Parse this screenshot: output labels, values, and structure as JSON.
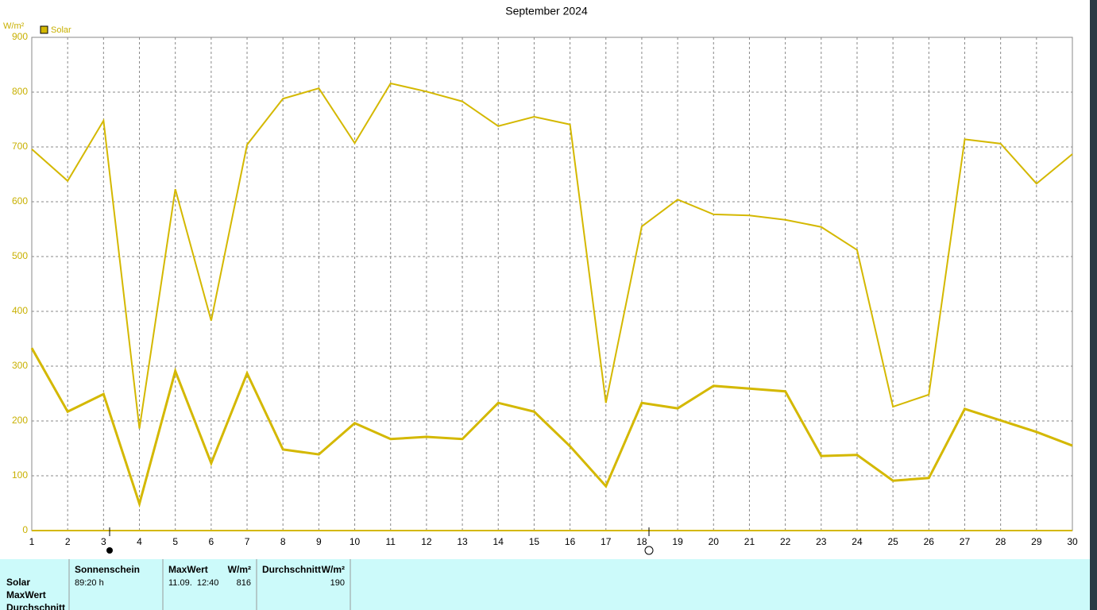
{
  "chart_data": {
    "type": "line",
    "title": "September 2024",
    "y_label": "W/m²",
    "legend_label": "Solar",
    "legend_color": "#d4b800",
    "x": [
      1,
      2,
      3,
      4,
      5,
      6,
      7,
      8,
      9,
      10,
      11,
      12,
      13,
      14,
      15,
      16,
      17,
      18,
      19,
      20,
      21,
      22,
      23,
      24,
      25,
      26,
      27,
      28,
      29,
      30
    ],
    "xlim": [
      1,
      30
    ],
    "xticks": [
      1,
      2,
      3,
      4,
      5,
      6,
      7,
      8,
      9,
      10,
      11,
      12,
      13,
      14,
      15,
      16,
      17,
      18,
      19,
      20,
      21,
      22,
      23,
      24,
      25,
      26,
      27,
      28,
      29,
      30
    ],
    "ylim": [
      0,
      900
    ],
    "yticks": [
      0,
      100,
      200,
      300,
      400,
      500,
      600,
      700,
      800,
      900
    ],
    "grid": true,
    "series": [
      {
        "color": "#d4b800",
        "width": 2,
        "values": [
          696,
          638,
          748,
          186,
          623,
          383,
          704,
          788,
          807,
          707,
          816,
          801,
          783,
          738,
          755,
          741,
          233,
          555,
          604,
          577,
          575,
          567,
          554,
          512,
          226,
          248,
          714,
          706,
          633,
          687
        ]
      },
      {
        "color": "#d4b800",
        "width": 3,
        "values": [
          333,
          217,
          249,
          49,
          291,
          123,
          287,
          148,
          139,
          196,
          167,
          171,
          167,
          233,
          217,
          154,
          81,
          233,
          223,
          264,
          259,
          254,
          136,
          138,
          91,
          96,
          222,
          201,
          180,
          155
        ]
      }
    ]
  },
  "table": {
    "row_labels": [
      "Solar",
      "MaxWert",
      "Durchschnitt"
    ],
    "sunshine": {
      "title": "Sonnenschein",
      "value": "89:20 h"
    },
    "max": {
      "title": "MaxWert",
      "unit": "W/m²",
      "date": "11.09.  12:40",
      "value": 816
    },
    "avg": {
      "title": "Durchschnitt",
      "unit": "W/m²",
      "value": 190
    }
  }
}
